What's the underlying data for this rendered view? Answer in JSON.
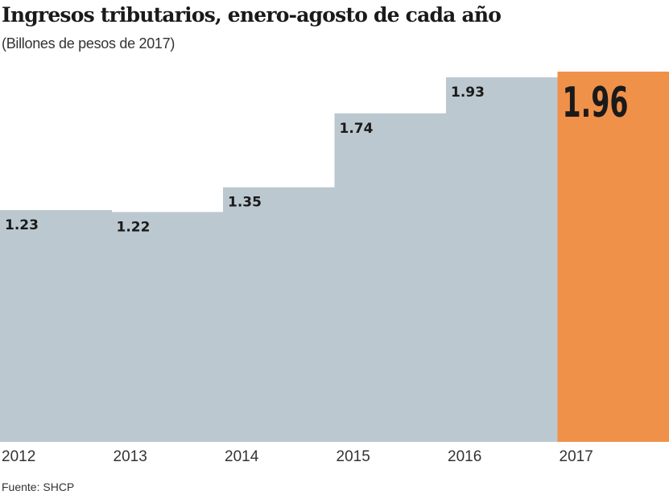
{
  "chart_data": {
    "type": "bar",
    "title": "Ingresos tributarios, enero-agosto de cada año",
    "subtitle": "(Billones de pesos de 2017)",
    "categories": [
      "2012",
      "2013",
      "2014",
      "2015",
      "2016",
      "2017"
    ],
    "values": [
      1.23,
      1.22,
      1.35,
      1.74,
      1.93,
      1.96
    ],
    "labels": [
      "1.23",
      "1.22",
      "1.35",
      "1.74",
      "1.93",
      "1.96"
    ],
    "highlight_index": 5,
    "xlabel": "",
    "ylabel": "",
    "ylim": [
      0,
      1.96
    ],
    "grid": false,
    "colors": {
      "default": "#bcc8d0",
      "highlight": "#f0914a",
      "label": "#1a1a1a"
    },
    "source": "Fuente: SHCP"
  }
}
